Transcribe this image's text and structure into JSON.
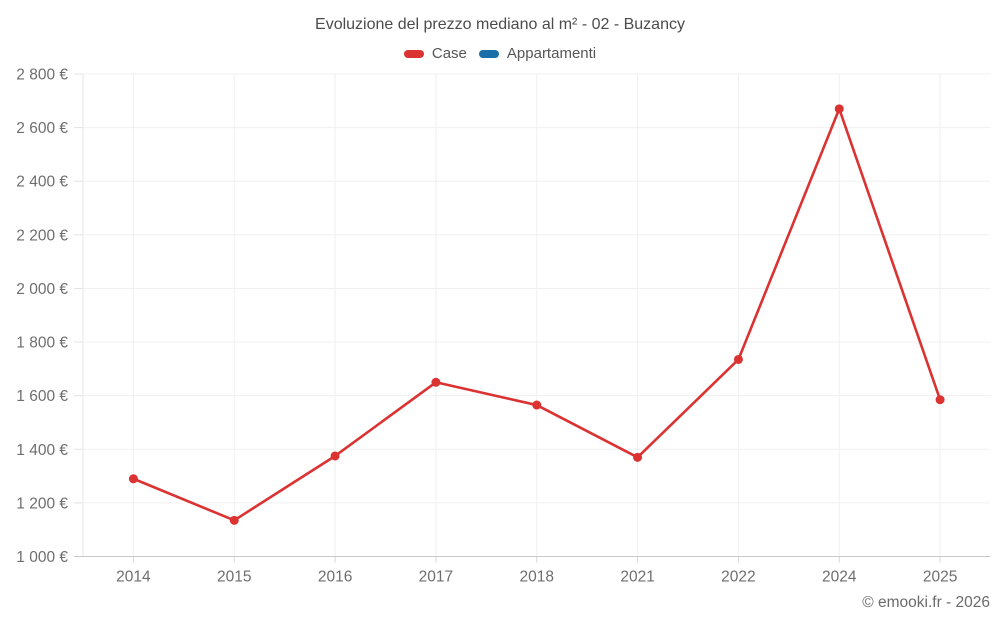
{
  "chart_data": {
    "type": "line",
    "title": "Evoluzione del prezzo mediano al m² - 02 - Buzancy",
    "categories": [
      "2014",
      "2015",
      "2016",
      "2017",
      "2018",
      "2021",
      "2022",
      "2024",
      "2025"
    ],
    "series": [
      {
        "name": "Case",
        "color": "#db3232",
        "values": [
          1290,
          1135,
          1375,
          1650,
          1565,
          1370,
          1735,
          2670,
          1585
        ]
      },
      {
        "name": "Appartamenti",
        "color": "#1a6fa8",
        "values": []
      }
    ],
    "xlabel": "",
    "ylabel": "",
    "ylim": [
      1000,
      2800
    ],
    "yticks": [
      1000,
      1200,
      1400,
      1600,
      1800,
      2000,
      2200,
      2400,
      2600,
      2800
    ],
    "ytick_suffix": " €",
    "grid": true,
    "legend_position": "top"
  },
  "footer": {
    "copyright": "© emooki.fr - 2026"
  }
}
